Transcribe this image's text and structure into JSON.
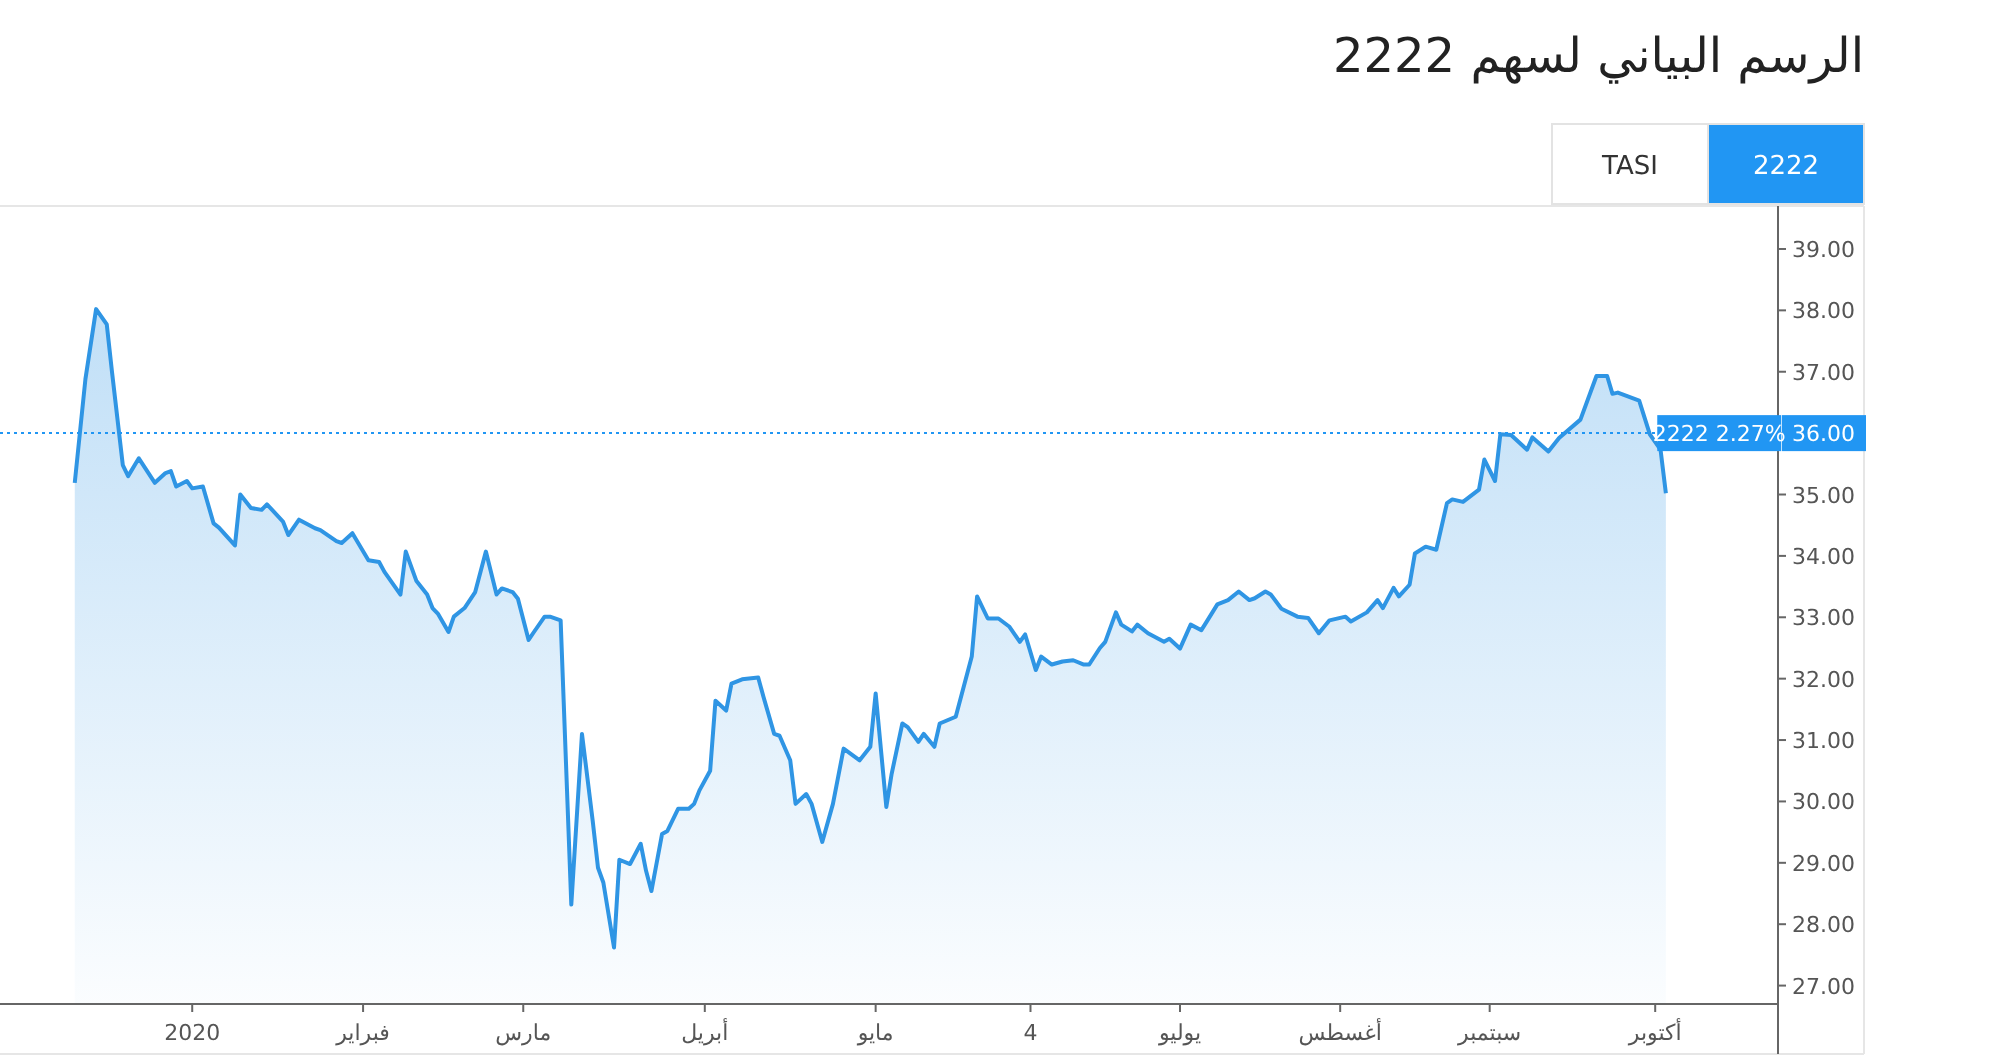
{
  "chart_data": {
    "type": "area",
    "title": "الرسم البياني لسهم 2222",
    "annotations": [
      "TASI",
      "2222",
      {
        "text": "2222 2.27%",
        "x": "2020-10-13",
        "y": 36
      }
    ],
    "x": [
      "2019-12-10",
      "2019-12-12",
      "2019-12-14",
      "2019-12-16",
      "2019-12-17",
      "2019-12-19",
      "2019-12-20",
      "2019-12-22",
      "2019-12-25",
      "2019-12-27",
      "2019-12-28",
      "2019-12-29",
      "2019-12-31",
      "2020-01-01",
      "2020-01-03",
      "2020-01-05",
      "2020-01-06",
      "2020-01-09",
      "2020-01-10",
      "2020-01-12",
      "2020-01-14",
      "2020-01-15",
      "2020-01-18",
      "2020-01-19",
      "2020-01-21",
      "2020-01-24",
      "2020-01-25",
      "2020-01-28",
      "2020-01-29",
      "2020-01-31",
      "2020-02-03",
      "2020-02-05",
      "2020-02-06",
      "2020-02-09",
      "2020-02-10",
      "2020-02-12",
      "2020-02-14",
      "2020-02-15",
      "2020-02-16",
      "2020-02-18",
      "2020-02-19",
      "2020-02-21",
      "2020-02-23",
      "2020-02-25",
      "2020-02-27",
      "2020-02-28",
      "2020-03-01",
      "2020-03-02",
      "2020-03-04",
      "2020-03-05",
      "2020-03-07",
      "2020-03-08",
      "2020-03-10",
      "2020-03-12",
      "2020-03-14",
      "2020-03-16",
      "2020-03-17",
      "2020-03-18",
      "2020-03-20",
      "2020-03-21",
      "2020-03-23",
      "2020-03-25",
      "2020-03-26",
      "2020-03-27",
      "2020-03-29",
      "2020-03-30",
      "2020-04-01",
      "2020-04-03",
      "2020-04-04",
      "2020-04-05",
      "2020-04-07",
      "2020-04-08",
      "2020-04-10",
      "2020-04-11",
      "2020-04-13",
      "2020-04-16",
      "2020-04-17",
      "2020-04-19",
      "2020-04-20",
      "2020-04-22",
      "2020-04-23",
      "2020-04-25",
      "2020-04-26",
      "2020-04-28",
      "2020-04-30",
      "2020-05-02",
      "2020-05-05",
      "2020-05-07",
      "2020-05-08",
      "2020-05-10",
      "2020-05-11",
      "2020-05-13",
      "2020-05-14",
      "2020-05-16",
      "2020-05-17",
      "2020-05-19",
      "2020-05-20",
      "2020-05-23",
      "2020-05-26",
      "2020-05-27",
      "2020-05-29",
      "2020-05-31",
      "2020-06-02",
      "2020-06-04",
      "2020-06-05",
      "2020-06-07",
      "2020-06-08",
      "2020-06-10",
      "2020-06-12",
      "2020-06-14",
      "2020-06-16",
      "2020-06-17",
      "2020-06-19",
      "2020-06-20",
      "2020-06-22",
      "2020-06-23",
      "2020-06-25",
      "2020-06-26",
      "2020-06-28",
      "2020-07-01",
      "2020-07-02",
      "2020-07-04",
      "2020-07-06",
      "2020-07-08",
      "2020-07-09",
      "2020-07-11",
      "2020-07-13",
      "2020-07-15",
      "2020-07-17",
      "2020-07-18",
      "2020-07-20",
      "2020-07-21",
      "2020-07-23",
      "2020-07-26",
      "2020-07-28",
      "2020-07-30",
      "2020-08-01",
      "2020-08-04",
      "2020-08-05",
      "2020-08-08",
      "2020-08-10",
      "2020-08-11",
      "2020-08-13",
      "2020-08-14",
      "2020-08-16",
      "2020-08-17",
      "2020-08-19",
      "2020-08-21",
      "2020-08-23",
      "2020-08-24",
      "2020-08-26",
      "2020-08-29",
      "2020-08-30",
      "2020-09-01",
      "2020-09-02",
      "2020-09-04",
      "2020-09-07",
      "2020-09-08",
      "2020-09-11",
      "2020-09-13",
      "2020-09-17",
      "2020-09-20",
      "2020-09-22",
      "2020-09-23",
      "2020-09-24",
      "2020-09-28",
      "2020-09-30",
      "2020-10-02",
      "2020-10-03"
    ],
    "series": [
      {
        "color": "#2f95e4",
        "values": [
          35.19,
          36.88,
          38.02,
          37.77,
          36.98,
          35.48,
          35.3,
          35.59,
          35.19,
          35.35,
          35.38,
          35.13,
          35.22,
          35.1,
          35.13,
          34.53,
          34.46,
          34.17,
          35.0,
          34.78,
          34.75,
          34.84,
          34.56,
          34.34,
          34.59,
          34.45,
          34.42,
          34.24,
          34.21,
          34.37,
          33.93,
          33.9,
          33.74,
          33.37,
          34.07,
          33.59,
          33.37,
          33.15,
          33.06,
          32.76,
          33.01,
          33.15,
          33.41,
          34.07,
          33.37,
          33.47,
          33.41,
          33.3,
          32.63,
          32.76,
          33.01,
          33.01,
          32.95,
          28.32,
          31.1,
          29.69,
          28.92,
          28.68,
          27.62,
          29.05,
          28.98,
          29.31,
          28.87,
          28.54,
          29.47,
          29.52,
          29.88,
          29.88,
          29.96,
          30.18,
          30.5,
          31.64,
          31.48,
          31.92,
          31.99,
          32.02,
          31.7,
          31.1,
          31.07,
          30.67,
          29.96,
          30.12,
          29.96,
          29.34,
          29.96,
          30.86,
          30.67,
          30.89,
          31.76,
          29.91,
          30.45,
          31.27,
          31.21,
          30.97,
          31.1,
          30.89,
          31.27,
          31.38,
          32.36,
          33.34,
          32.98,
          32.98,
          32.85,
          32.6,
          32.72,
          32.14,
          32.36,
          32.23,
          32.28,
          32.3,
          32.23,
          32.23,
          32.5,
          32.6,
          33.08,
          32.88,
          32.77,
          32.88,
          32.74,
          32.6,
          32.65,
          32.49,
          32.88,
          32.79,
          32.93,
          33.21,
          33.28,
          33.42,
          33.28,
          33.31,
          33.42,
          33.37,
          33.14,
          33.01,
          32.99,
          32.74,
          32.95,
          33.01,
          32.93,
          33.08,
          33.28,
          33.15,
          33.48,
          33.34,
          33.53,
          34.04,
          34.15,
          34.1,
          34.86,
          34.92,
          34.88,
          35.08,
          35.57,
          35.22,
          35.98,
          35.97,
          35.73,
          35.93,
          35.7,
          35.92,
          36.22,
          36.93,
          36.93,
          36.64,
          36.66,
          36.53,
          35.98,
          35.73,
          35.02
        ]
      }
    ],
    "xlim": [
      "2019-11-26",
      "2020-10-24"
    ],
    "xticks": [
      {
        "value": "2020-01-01",
        "label": "2020"
      },
      {
        "value": "2020-02-02",
        "label": "فبراير"
      },
      {
        "value": "2020-03-03",
        "label": "مارس"
      },
      {
        "value": "2020-04-06",
        "label": "أبريل"
      },
      {
        "value": "2020-05-08",
        "label": "مايو"
      },
      {
        "value": "2020-06-06",
        "label": "4"
      },
      {
        "value": "2020-07-04",
        "label": "يوليو"
      },
      {
        "value": "2020-08-03",
        "label": "أغسطس"
      },
      {
        "value": "2020-08-31",
        "label": "سبتمبر"
      },
      {
        "value": "2020-10-01",
        "label": "أكتوبر"
      }
    ],
    "ylim": [
      26.7,
      39.7
    ],
    "yticks": [
      {
        "value": 27,
        "label": "27.00"
      },
      {
        "value": 28,
        "label": "28.00"
      },
      {
        "value": 29,
        "label": "29.00"
      },
      {
        "value": 30,
        "label": "30.00"
      },
      {
        "value": 31,
        "label": "31.00"
      },
      {
        "value": 32,
        "label": "32.00"
      },
      {
        "value": 33,
        "label": "33.00"
      },
      {
        "value": 34,
        "label": "34.00"
      },
      {
        "value": 35,
        "label": "35.00"
      },
      {
        "value": 36,
        "label": "36.00"
      },
      {
        "value": 37,
        "label": "37.00"
      },
      {
        "value": 38,
        "label": "38.00"
      },
      {
        "value": 39,
        "label": "39.00"
      }
    ],
    "ref_lines": [
      {
        "axis": "y",
        "value": 36,
        "color": "#2196f3",
        "line_style": "dotted"
      }
    ],
    "grid": false
  }
}
